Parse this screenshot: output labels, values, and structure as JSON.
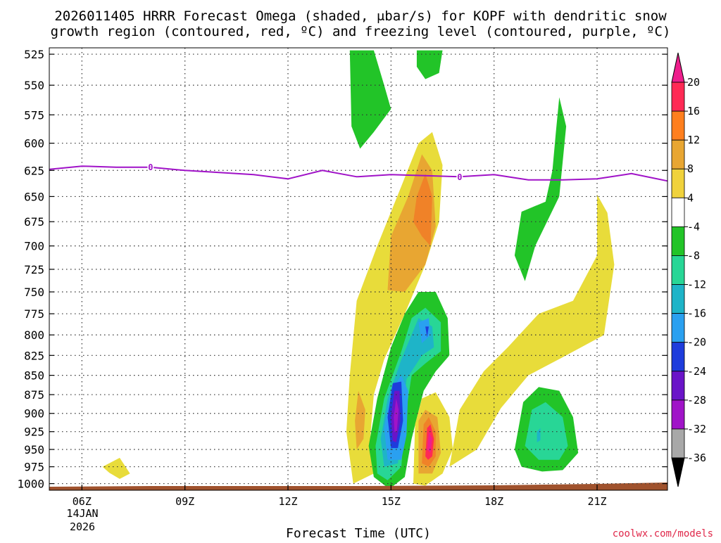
{
  "title_lines": [
    "2026011405 HRRR Forecast Omega (shaded, μbar/s) for KOPF with dendritic snow",
    "growth region (contoured, red, ºC) and freezing level (contoured, purple, ºC)"
  ],
  "credit": "coolwx.com/models",
  "chart_data": {
    "type": "heatmap",
    "xlabel": "Forecast Time (UTC)",
    "ylabel": "",
    "x_ticks": [
      {
        "hour": 6,
        "label": "06Z"
      },
      {
        "hour": 9,
        "label": "09Z"
      },
      {
        "hour": 12,
        "label": "12Z"
      },
      {
        "hour": 15,
        "label": "15Z"
      },
      {
        "hour": 18,
        "label": "18Z"
      },
      {
        "hour": 21,
        "label": "21Z"
      }
    ],
    "x_date_label": [
      "14JAN",
      "2026"
    ],
    "xlim": [
      5.05,
      23.05
    ],
    "y_ticks": [
      525,
      550,
      575,
      600,
      625,
      650,
      675,
      700,
      725,
      750,
      775,
      800,
      825,
      850,
      875,
      900,
      925,
      950,
      975,
      1000
    ],
    "ylim": [
      1010,
      520
    ],
    "colorbar": {
      "labels": [
        "20",
        "16",
        "12",
        "8",
        "4",
        "-4",
        "-8",
        "-12",
        "-16",
        "-20",
        "-24",
        "-28",
        "-32",
        "-36"
      ],
      "colors": [
        "#ff2a55",
        "#ff7f1e",
        "#e8a632",
        "#f0d23c",
        "#ffffff",
        "#22c428",
        "#28d696",
        "#1eb4c8",
        "#2aa0f0",
        "#1e3cdc",
        "#6a14c8",
        "#a014c8",
        "#a8a8a8"
      ],
      "top_arrow_color": "#ee1e8c",
      "bottom_arrow_color": "#000000"
    },
    "freezing_level": {
      "label": "0",
      "color": "#a012c8",
      "points": [
        [
          5.05,
          624
        ],
        [
          6,
          621
        ],
        [
          7,
          622
        ],
        [
          8,
          622
        ],
        [
          9,
          625
        ],
        [
          10,
          627
        ],
        [
          11,
          629
        ],
        [
          12,
          633
        ],
        [
          13,
          625
        ],
        [
          14,
          631
        ],
        [
          15,
          629
        ],
        [
          16,
          630
        ],
        [
          17,
          631
        ],
        [
          18,
          629
        ],
        [
          19,
          634
        ],
        [
          20,
          634
        ],
        [
          21,
          633
        ],
        [
          22,
          628
        ],
        [
          23.05,
          635
        ]
      ],
      "label_positions": [
        [
          8,
          622
        ],
        [
          17,
          631
        ]
      ]
    },
    "shaded_regions": [
      {
        "bin": "4 to 8",
        "color": "#e8dc3a",
        "points": [
          [
            13.9,
            1000
          ],
          [
            13.7,
            925
          ],
          [
            13.8,
            850
          ],
          [
            14.0,
            760
          ],
          [
            14.6,
            700
          ],
          [
            15.3,
            640
          ],
          [
            15.8,
            600
          ],
          [
            16.2,
            590
          ],
          [
            16.5,
            620
          ],
          [
            16.4,
            675
          ],
          [
            16.0,
            720
          ],
          [
            15.4,
            775
          ],
          [
            14.8,
            830
          ],
          [
            14.5,
            875
          ],
          [
            14.4,
            930
          ],
          [
            14.5,
            985
          ]
        ]
      },
      {
        "bin": "4 to 8",
        "color": "#e8dc3a",
        "points": [
          [
            16.7,
            975
          ],
          [
            17.0,
            895
          ],
          [
            17.7,
            845
          ],
          [
            18.4,
            815
          ],
          [
            19.3,
            775
          ],
          [
            20.3,
            760
          ],
          [
            21.0,
            710
          ],
          [
            21.0,
            648
          ],
          [
            21.3,
            666
          ],
          [
            21.5,
            720
          ],
          [
            21.2,
            800
          ],
          [
            20.1,
            825
          ],
          [
            19.0,
            850
          ],
          [
            18.2,
            893
          ],
          [
            17.5,
            950
          ]
        ]
      },
      {
        "bin": "4 to 8",
        "color": "#e8dc3a",
        "points": [
          [
            6.6,
            975
          ],
          [
            7.1,
            962
          ],
          [
            7.4,
            985
          ],
          [
            7.1,
            993
          ],
          [
            6.8,
            984
          ]
        ]
      },
      {
        "bin": "8 to 12",
        "color": "#e8a632",
        "points": [
          [
            14.9,
            748
          ],
          [
            15.0,
            690
          ],
          [
            15.5,
            650
          ],
          [
            15.9,
            610
          ],
          [
            16.2,
            625
          ],
          [
            16.3,
            680
          ],
          [
            16.0,
            720
          ],
          [
            15.4,
            750
          ]
        ]
      },
      {
        "bin": "8 to 12",
        "color": "#e8a632",
        "points": [
          [
            14.05,
            870
          ],
          [
            14.25,
            895
          ],
          [
            14.2,
            935
          ],
          [
            14.0,
            950
          ],
          [
            13.95,
            910
          ]
        ]
      },
      {
        "bin": "12 to 16",
        "color": "#f08228",
        "points": [
          [
            15.65,
            675
          ],
          [
            15.75,
            650
          ],
          [
            16.0,
            628
          ],
          [
            16.2,
            650
          ],
          [
            16.15,
            700
          ],
          [
            15.9,
            690
          ]
        ]
      },
      {
        "bin": "-8 to -4",
        "color": "#22c428",
        "points": [
          [
            13.8,
            522
          ],
          [
            14.5,
            522
          ],
          [
            14.8,
            550
          ],
          [
            15.0,
            570
          ],
          [
            14.5,
            590
          ],
          [
            14.1,
            605
          ],
          [
            13.85,
            585
          ]
        ]
      },
      {
        "bin": "-8 to -4",
        "color": "#22c428",
        "points": [
          [
            15.75,
            522
          ],
          [
            16.5,
            522
          ],
          [
            16.4,
            540
          ],
          [
            16.0,
            545
          ],
          [
            15.75,
            535
          ]
        ]
      },
      {
        "bin": "-8 to -4",
        "color": "#22c428",
        "points": [
          [
            14.35,
            945
          ],
          [
            14.6,
            880
          ],
          [
            15.0,
            815
          ],
          [
            15.4,
            775
          ],
          [
            15.8,
            750
          ],
          [
            16.3,
            750
          ],
          [
            16.65,
            780
          ],
          [
            16.7,
            825
          ],
          [
            16.3,
            845
          ],
          [
            15.95,
            870
          ],
          [
            15.6,
            935
          ],
          [
            15.4,
            990
          ],
          [
            14.95,
            1008
          ],
          [
            14.5,
            990
          ]
        ]
      },
      {
        "bin": "-8 to -4",
        "color": "#22c428",
        "points": [
          [
            18.6,
            950
          ],
          [
            18.85,
            885
          ],
          [
            19.3,
            865
          ],
          [
            19.9,
            870
          ],
          [
            20.3,
            905
          ],
          [
            20.45,
            955
          ],
          [
            20.0,
            980
          ],
          [
            19.4,
            982
          ],
          [
            18.8,
            975
          ]
        ]
      },
      {
        "bin": "-8 to -4",
        "color": "#22c428",
        "points": [
          [
            18.6,
            710
          ],
          [
            18.8,
            665
          ],
          [
            19.5,
            655
          ],
          [
            19.7,
            625
          ],
          [
            19.8,
            590
          ],
          [
            19.9,
            560
          ],
          [
            20.1,
            585
          ],
          [
            19.9,
            650
          ],
          [
            19.2,
            700
          ],
          [
            18.9,
            738
          ]
        ]
      },
      {
        "bin": "-12 to -8",
        "color": "#28d696",
        "points": [
          [
            18.9,
            945
          ],
          [
            19.1,
            895
          ],
          [
            19.5,
            885
          ],
          [
            20.0,
            905
          ],
          [
            20.15,
            945
          ],
          [
            19.9,
            965
          ],
          [
            19.3,
            965
          ]
        ]
      },
      {
        "bin": "-12 to -8",
        "color": "#28d696",
        "points": [
          [
            14.55,
            945
          ],
          [
            14.8,
            880
          ],
          [
            15.3,
            820
          ],
          [
            15.6,
            780
          ],
          [
            16.0,
            768
          ],
          [
            16.45,
            785
          ],
          [
            16.45,
            820
          ],
          [
            16.0,
            835
          ],
          [
            15.6,
            850
          ],
          [
            15.4,
            910
          ],
          [
            15.3,
            975
          ],
          [
            14.9,
            995
          ],
          [
            14.6,
            985
          ]
        ]
      },
      {
        "bin": "-16 to -12",
        "color": "#1eb4c8",
        "points": [
          [
            14.7,
            935
          ],
          [
            14.9,
            880
          ],
          [
            15.3,
            830
          ],
          [
            15.8,
            780
          ],
          [
            16.2,
            790
          ],
          [
            16.25,
            815
          ],
          [
            15.9,
            825
          ],
          [
            15.45,
            855
          ],
          [
            15.3,
            925
          ],
          [
            15.2,
            970
          ],
          [
            14.8,
            975
          ]
        ]
      },
      {
        "bin": "-16 to -12",
        "color": "#1eb4c8",
        "points": [
          [
            19.25,
            925
          ],
          [
            19.35,
            920
          ],
          [
            19.35,
            937
          ],
          [
            19.25,
            940
          ]
        ]
      },
      {
        "bin": "-20 to -16",
        "color": "#2aa0f0",
        "points": [
          [
            14.8,
            920
          ],
          [
            15.0,
            870
          ],
          [
            15.3,
            850
          ],
          [
            15.5,
            870
          ],
          [
            15.45,
            930
          ],
          [
            15.3,
            965
          ],
          [
            14.9,
            965
          ]
        ]
      },
      {
        "bin": "-20 to -16",
        "color": "#2aa0f0",
        "points": [
          [
            15.8,
            785
          ],
          [
            16.1,
            780
          ],
          [
            16.15,
            800
          ],
          [
            15.9,
            810
          ]
        ]
      },
      {
        "bin": "-24 to -20",
        "color": "#1e3cdc",
        "points": [
          [
            14.9,
            905
          ],
          [
            15.05,
            860
          ],
          [
            15.3,
            858
          ],
          [
            15.35,
            910
          ],
          [
            15.2,
            948
          ],
          [
            15.0,
            948
          ]
        ]
      },
      {
        "bin": "-24 to -20",
        "color": "#1e3cdc",
        "points": [
          [
            16.0,
            790
          ],
          [
            16.1,
            790
          ],
          [
            16.05,
            803
          ]
        ]
      },
      {
        "bin": "-28 to -24",
        "color": "#6a14c8",
        "points": [
          [
            15.0,
            905
          ],
          [
            15.1,
            870
          ],
          [
            15.25,
            870
          ],
          [
            15.27,
            910
          ],
          [
            15.15,
            940
          ],
          [
            15.05,
            938
          ]
        ]
      },
      {
        "bin": "-32 to -28",
        "color": "#a014c8",
        "points": [
          [
            15.08,
            905
          ],
          [
            15.15,
            880
          ],
          [
            15.22,
            895
          ],
          [
            15.17,
            925
          ],
          [
            15.1,
            925
          ]
        ]
      },
      {
        "bin": "4 to 8",
        "color": "#e8dc3a",
        "points": [
          [
            15.65,
            1000
          ],
          [
            15.7,
            915
          ],
          [
            15.9,
            880
          ],
          [
            16.3,
            872
          ],
          [
            16.7,
            905
          ],
          [
            16.8,
            950
          ],
          [
            16.5,
            985
          ],
          [
            16.0,
            1003
          ]
        ]
      },
      {
        "bin": "8 to 12",
        "color": "#e8a632",
        "points": [
          [
            15.8,
            985
          ],
          [
            15.8,
            910
          ],
          [
            16.0,
            895
          ],
          [
            16.35,
            905
          ],
          [
            16.45,
            955
          ],
          [
            16.2,
            985
          ]
        ]
      },
      {
        "bin": "12 to 16",
        "color": "#f08228",
        "points": [
          [
            15.9,
            970
          ],
          [
            15.95,
            915
          ],
          [
            16.1,
            905
          ],
          [
            16.3,
            925
          ],
          [
            16.3,
            960
          ],
          [
            16.1,
            975
          ]
        ]
      },
      {
        "bin": "16 to 20",
        "color": "#ff2a55",
        "points": [
          [
            16.0,
            960
          ],
          [
            16.05,
            920
          ],
          [
            16.15,
            915
          ],
          [
            16.25,
            935
          ],
          [
            16.2,
            960
          ],
          [
            16.08,
            965
          ]
        ]
      },
      {
        "bin": "> 20",
        "color": "#ee1e8c",
        "points": [
          [
            16.05,
            950
          ],
          [
            16.1,
            925
          ],
          [
            16.2,
            935
          ],
          [
            16.15,
            955
          ]
        ]
      }
    ],
    "terrain_color": "#a0522d",
    "grid": true
  }
}
